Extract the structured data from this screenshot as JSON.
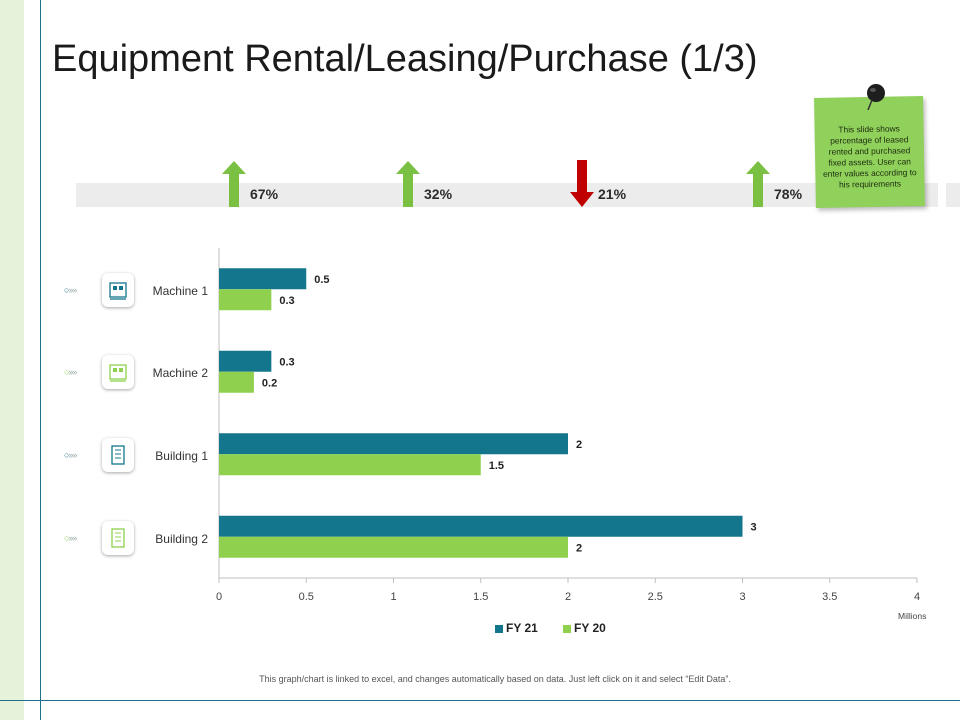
{
  "title": "Equipment Rental/Leasing/Purchase (1/3)",
  "indicators": [
    {
      "value": "67%",
      "direction": "up",
      "color": "#7ac143"
    },
    {
      "value": "32%",
      "direction": "up",
      "color": "#7ac143"
    },
    {
      "value": "21%",
      "direction": "down",
      "color": "#c00000"
    },
    {
      "value": "78%",
      "direction": "up",
      "color": "#7ac143"
    }
  ],
  "note": {
    "text": "This slide shows percentage of leased rented and purchased fixed assets. User can enter values according to his requirements"
  },
  "footer_text": "This graph/chart is linked to excel, and changes automatically based on data. Just left click on it and select “Edit Data”.",
  "colors": {
    "fy21": "#14768c",
    "fy20": "#8fd14f",
    "axis": "#bfbfbf"
  },
  "chart_data": {
    "type": "bar",
    "orientation": "horizontal",
    "categories": [
      "Machine 1",
      "Machine 2",
      "Building 1",
      "Building 2"
    ],
    "series": [
      {
        "name": "FY 21",
        "values": [
          0.5,
          0.3,
          2,
          3
        ]
      },
      {
        "name": "FY 20",
        "values": [
          0.3,
          0.2,
          1.5,
          2
        ]
      }
    ],
    "xlim": [
      0,
      4
    ],
    "xticks": [
      "0",
      "0.5",
      "1",
      "1.5",
      "2",
      "2.5",
      "3",
      "3.5",
      "4"
    ],
    "xlabel": "Millions",
    "data_labels": [
      [
        "0.5",
        "0.3",
        "2",
        "3"
      ],
      [
        "0.3",
        "0.2",
        "1.5",
        "2"
      ]
    ],
    "legend_position": "bottom",
    "grid": false,
    "category_icons": [
      "machine-icon",
      "machine-icon",
      "building-icon",
      "building-icon"
    ]
  }
}
